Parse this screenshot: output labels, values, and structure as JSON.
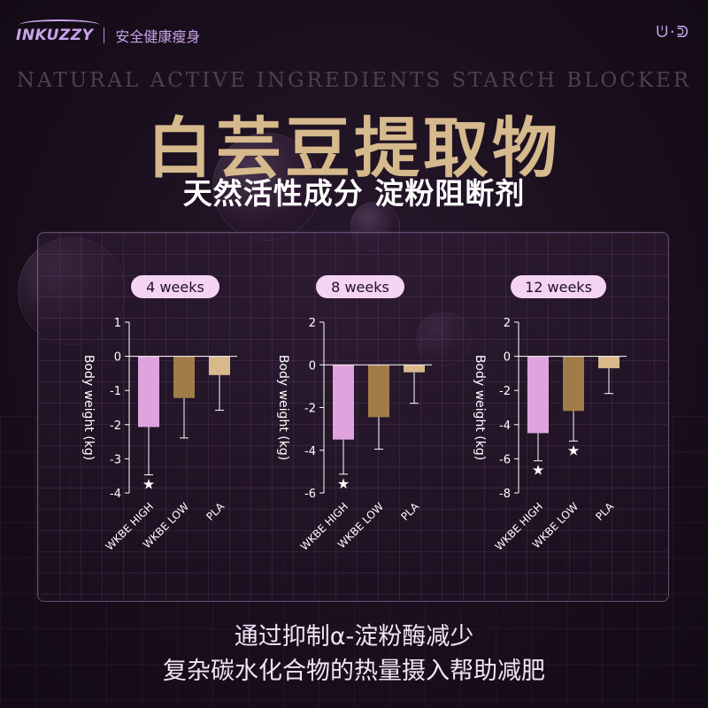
{
  "header": {
    "logo": "INKUZZY",
    "tagline": "安全健康瘦身",
    "deco_icon": "ᕫ·ᕲ"
  },
  "hero": {
    "subtitle_en": "NATURAL ACTIVE INGREDIENTS STARCH BLOCKER",
    "title_cn": "白芸豆提取物",
    "subtitle_cn": "天然活性成分 淀粉阻断剂"
  },
  "footer": {
    "line1": "通过抑制α-淀粉酶减少",
    "line2": "复杂碳水化合物的热量摄入帮助减肥"
  },
  "colors": {
    "high": "#e0a3de",
    "low": "#a07d48",
    "pla": "#d8b98c",
    "pill_bg": "#f5d3f2"
  },
  "chart_data": [
    {
      "type": "bar",
      "title": "4 weeks",
      "ylabel": "Body weight (kg)",
      "categories": [
        "WKBE HIGH",
        "WKBE LOW",
        "PLA"
      ],
      "values": [
        -2.07,
        -1.22,
        -0.55
      ],
      "errors": [
        1.4,
        1.17,
        1.03
      ],
      "significant": [
        true,
        false,
        false
      ],
      "ylim": [
        -4,
        1
      ],
      "yticks": [
        1,
        0,
        -1,
        -2,
        -3,
        -4
      ]
    },
    {
      "type": "bar",
      "title": "8 weeks",
      "ylabel": "Body weight (kg)",
      "categories": [
        "WKBE HIGH",
        "WKBE LOW",
        "PLA"
      ],
      "values": [
        -3.5,
        -2.45,
        -0.35
      ],
      "errors": [
        1.62,
        1.5,
        1.45
      ],
      "significant": [
        true,
        false,
        false
      ],
      "ylim": [
        -6,
        2
      ],
      "yticks": [
        2,
        0,
        -2,
        -4,
        -6
      ]
    },
    {
      "type": "bar",
      "title": "12 weeks",
      "ylabel": "Body weight (kg)",
      "categories": [
        "WKBE HIGH",
        "WKBE LOW",
        "PLA"
      ],
      "values": [
        -4.5,
        -3.2,
        -0.7
      ],
      "errors": [
        1.62,
        1.76,
        1.48
      ],
      "significant": [
        true,
        true,
        false
      ],
      "ylim": [
        -8,
        2
      ],
      "yticks": [
        2,
        0,
        -2,
        -4,
        -6,
        -8
      ]
    }
  ]
}
